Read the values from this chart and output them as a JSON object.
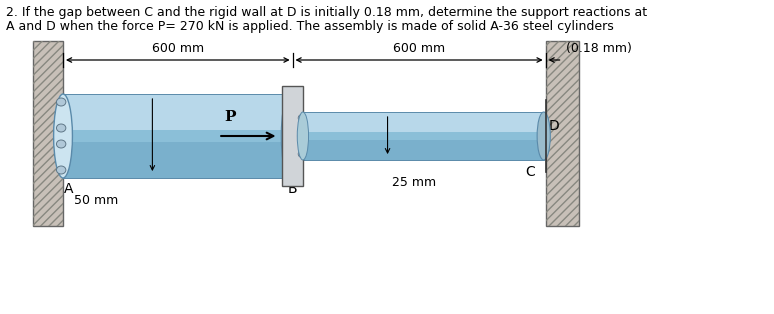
{
  "title_line1": "2. If the gap between C and the rigid wall at D is initially 0.18 mm, determine the support reactions at",
  "title_line2": "A and D when the force P= 270 kN is applied. The assembly is made of solid A-36 steel cylinders",
  "title_fontsize": 9.0,
  "bg_color": "#ffffff",
  "label_A": "A",
  "label_B": "B",
  "label_C": "C",
  "label_D": "D",
  "label_P": "P",
  "dim1": "600 mm",
  "dim2": "600 mm",
  "gap_label": "(0.18 mm)",
  "diam_large": "50 mm",
  "diam_small": "25 mm",
  "cyl_top_color": "#b8d8ea",
  "cyl_mid_color": "#8bbfd8",
  "cyl_bot_color": "#7ab0cc",
  "cyl_edge_color": "#5a8aaa",
  "wall_fill": "#c8c0b8",
  "wall_edge": "#666666",
  "block_fill": "#d0d4d8",
  "block_edge": "#555555"
}
